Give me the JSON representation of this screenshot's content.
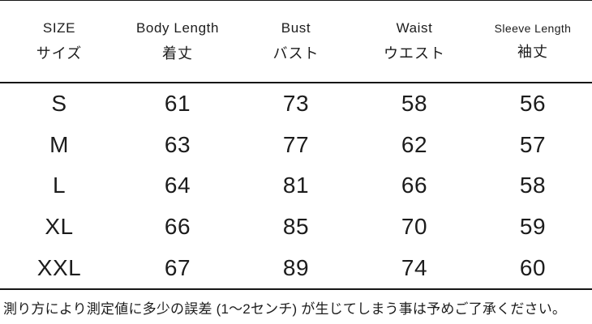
{
  "table": {
    "columns": [
      {
        "en": "SIZE",
        "ja": "サイズ"
      },
      {
        "en": "Body Length",
        "ja": "着丈"
      },
      {
        "en": "Bust",
        "ja": "バスト"
      },
      {
        "en": "Waist",
        "ja": "ウエスト"
      },
      {
        "en": "Sleeve Length",
        "ja": "袖丈"
      }
    ],
    "rows": [
      {
        "size": "S",
        "body_length": "61",
        "bust": "73",
        "waist": "58",
        "sleeve_length": "56"
      },
      {
        "size": "M",
        "body_length": "63",
        "bust": "77",
        "waist": "62",
        "sleeve_length": "57"
      },
      {
        "size": "L",
        "body_length": "64",
        "bust": "81",
        "waist": "66",
        "sleeve_length": "58"
      },
      {
        "size": "XL",
        "body_length": "66",
        "bust": "85",
        "waist": "70",
        "sleeve_length": "59"
      },
      {
        "size": "XXL",
        "body_length": "67",
        "bust": "89",
        "waist": "74",
        "sleeve_length": "60"
      }
    ]
  },
  "note": "測り方により測定値に多少の誤差 (1～2センチ) が生じてしまう事は予めご了承ください。",
  "colors": {
    "background": "#ffffff",
    "text": "#1c1c1c",
    "line": "#161616"
  }
}
